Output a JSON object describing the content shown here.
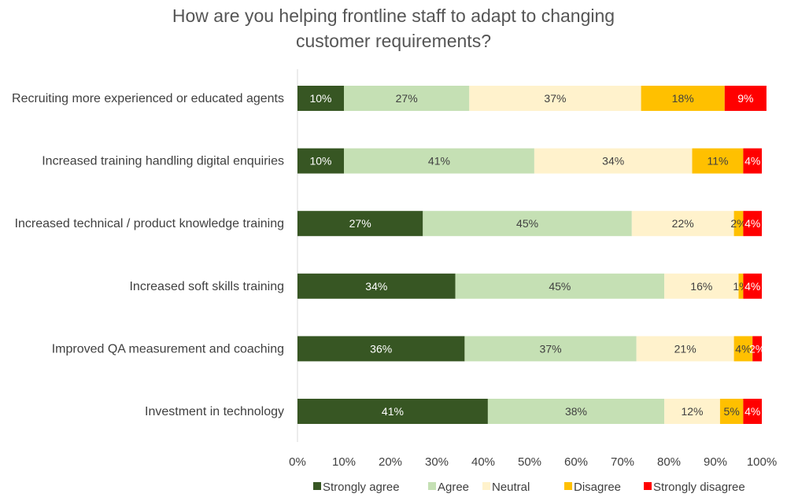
{
  "chart_data": {
    "type": "bar",
    "orientation": "horizontal",
    "stacked": true,
    "title": "How are you helping frontline staff to adapt to changing customer requirements?",
    "categories": [
      "Recruiting more experienced or educated agents",
      "Increased training handling digital enquiries",
      "Increased technical / product knowledge training",
      "Increased soft skills training",
      "Improved QA measurement and coaching",
      "Investment in technology"
    ],
    "series": [
      {
        "name": "Strongly agree",
        "color": "#375623",
        "label_color": "#ffffff",
        "values": [
          10,
          10,
          27,
          34,
          36,
          41
        ]
      },
      {
        "name": "Agree",
        "color": "#c5e0b4",
        "label_color": "#404040",
        "values": [
          27,
          41,
          45,
          45,
          37,
          38
        ]
      },
      {
        "name": "Neutral",
        "color": "#fff2cc",
        "label_color": "#404040",
        "values": [
          37,
          34,
          22,
          16,
          21,
          12
        ]
      },
      {
        "name": "Disagree",
        "color": "#ffc000",
        "label_color": "#404040",
        "values": [
          18,
          11,
          2,
          1,
          4,
          5
        ]
      },
      {
        "name": "Strongly disagree",
        "color": "#ff0000",
        "label_color": "#ffffff",
        "values": [
          9,
          4,
          4,
          4,
          2,
          4
        ]
      }
    ],
    "xlim": [
      0,
      100
    ],
    "x_ticks": [
      "0%",
      "10%",
      "20%",
      "30%",
      "40%",
      "50%",
      "60%",
      "70%",
      "80%",
      "90%",
      "100%"
    ],
    "value_suffix": "%",
    "grid": false,
    "legend_position": "bottom"
  }
}
